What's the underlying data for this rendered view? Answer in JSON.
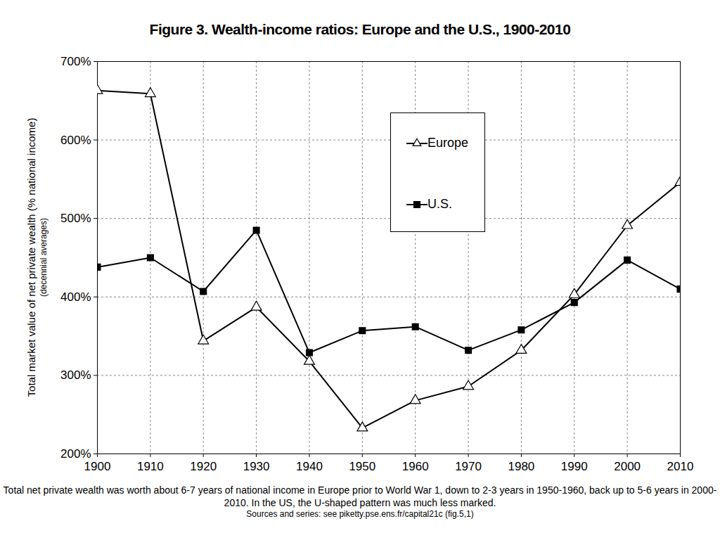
{
  "chart_data": {
    "type": "line",
    "title": "Figure 3. Wealth-income ratios: Europe and the U.S., 1900-2010",
    "y_label": "Total market value of net private wealth (% national income)",
    "y_label_note": "(decennial averages)",
    "caption": "Total net private wealth was worth about 6-7 years of national income in Europe prior to World War 1, down to 2-3 years in 1950-1960, back up to 5-6 years in 2000-2010. In the US, the U-shaped pattern was much less marked.",
    "source": "Sources and series:  see piketty.pse.ens.fr/capital21c  (fig.5,1)",
    "x": [
      1900,
      1910,
      1920,
      1930,
      1940,
      1950,
      1960,
      1970,
      1980,
      1990,
      2000,
      2010
    ],
    "series": [
      {
        "name": "Europe",
        "color": "#000000",
        "marker": "open-triangle",
        "line_style": "solid",
        "values": [
          663,
          659,
          344,
          387,
          318,
          233,
          268,
          286,
          332,
          403,
          491,
          546
        ]
      },
      {
        "name": "U.S.",
        "color": "#000000",
        "marker": "square",
        "line_style": "solid",
        "values": [
          438,
          450,
          407,
          485,
          329,
          357,
          362,
          332,
          358,
          393,
          447,
          410
        ]
      }
    ],
    "xlim": [
      1900,
      2010
    ],
    "xticks": [
      1900,
      1910,
      1920,
      1930,
      1940,
      1950,
      1960,
      1970,
      1980,
      1990,
      2000,
      2010
    ],
    "ylim": [
      200,
      700
    ],
    "yticks": [
      {
        "value": 200,
        "label": "200%"
      },
      {
        "value": 300,
        "label": "300%"
      },
      {
        "value": 400,
        "label": "400%"
      },
      {
        "value": 500,
        "label": "500%"
      },
      {
        "value": 600,
        "label": "600%"
      },
      {
        "value": 700,
        "label": "700%"
      }
    ],
    "grid": true,
    "legend": "upper-right"
  }
}
